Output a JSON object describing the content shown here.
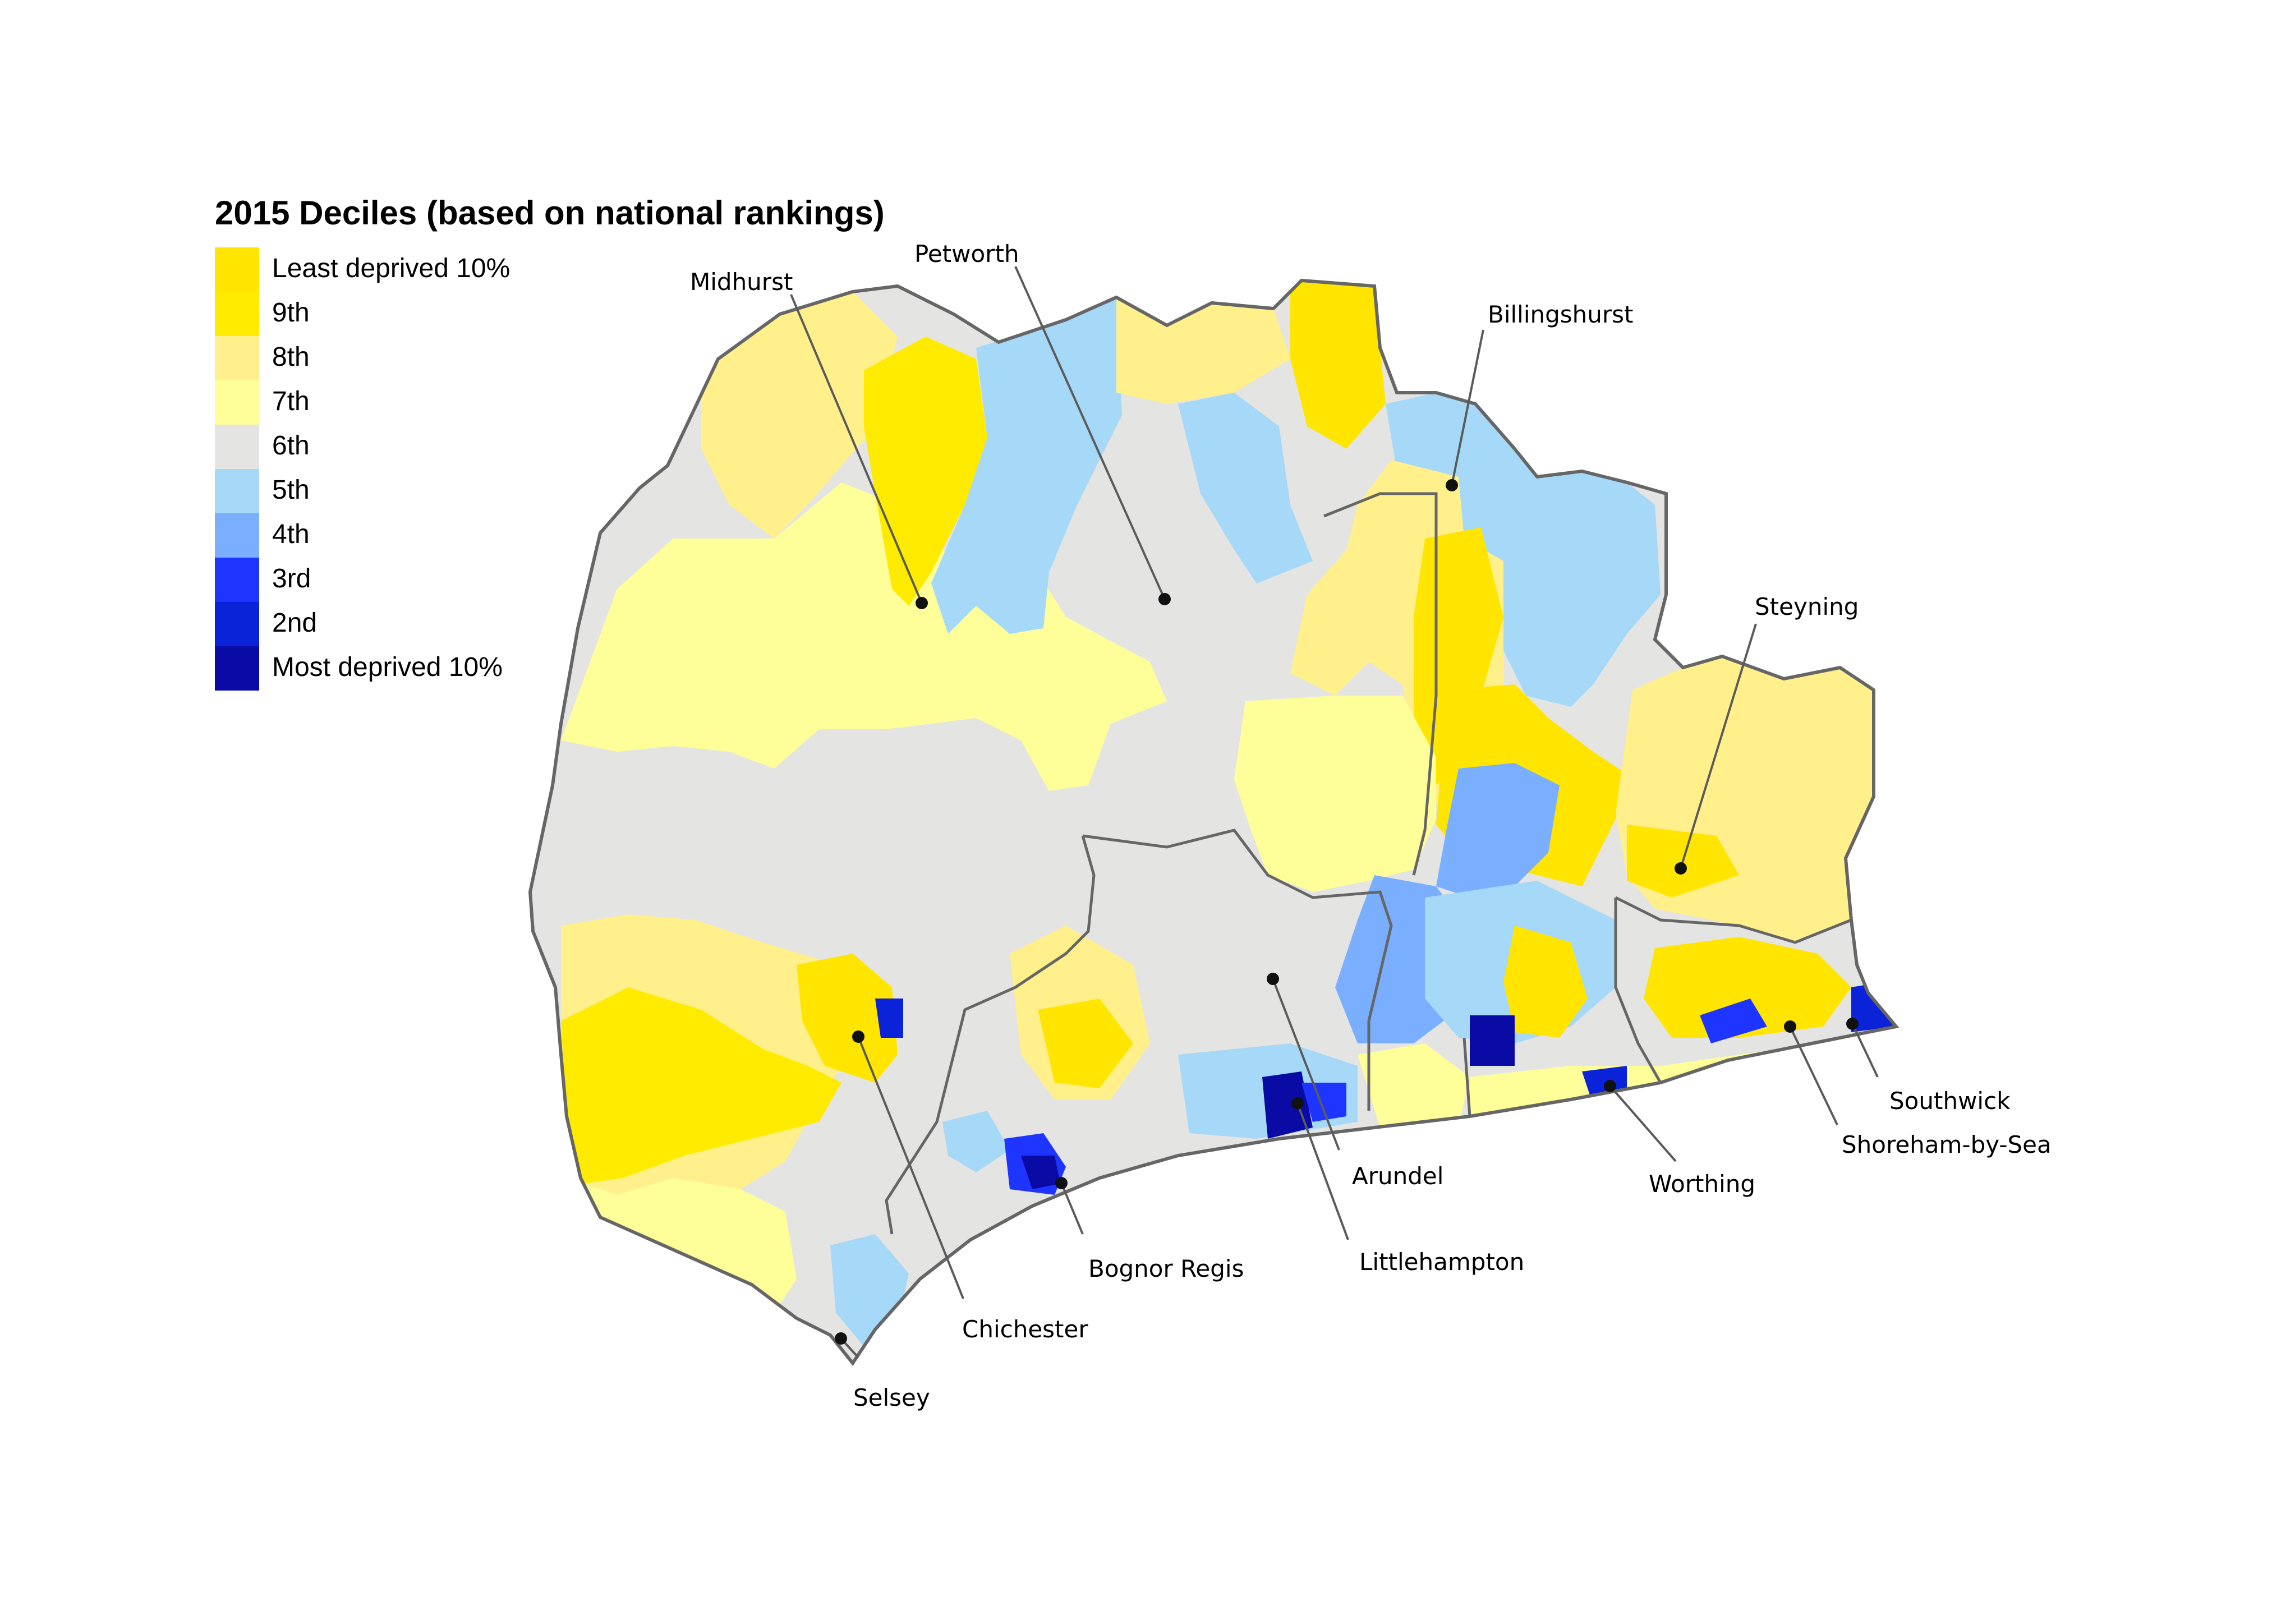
{
  "legend": {
    "title": "2015 Deciles (based on national rankings)",
    "items": [
      {
        "label": "Least deprived 10%",
        "color": "#FFE500"
      },
      {
        "label": "9th",
        "color": "#FFEB00"
      },
      {
        "label": "8th",
        "color": "#FFF08C"
      },
      {
        "label": "7th",
        "color": "#FFFF99"
      },
      {
        "label": "6th",
        "color": "#E4E4E2"
      },
      {
        "label": "5th",
        "color": "#A6D8F8"
      },
      {
        "label": "4th",
        "color": "#7AAFFF"
      },
      {
        "label": "3rd",
        "color": "#1E35FF"
      },
      {
        "label": "2nd",
        "color": "#0A22D8"
      },
      {
        "label": "Most deprived 10%",
        "color": "#0A0AA5"
      }
    ]
  },
  "places": {
    "midhurst": "Midhurst",
    "petworth": "Petworth",
    "billingshurst": "Billingshurst",
    "steyning": "Steyning",
    "southwick": "Southwick",
    "shoreham": "Shoreham-by-Sea",
    "worthing": "Worthing",
    "arundel": "Arundel",
    "littlehampton": "Littlehampton",
    "bognor": "Bognor Regis",
    "chichester": "Chichester",
    "selsey": "Selsey"
  },
  "boundary_color": "#666666"
}
